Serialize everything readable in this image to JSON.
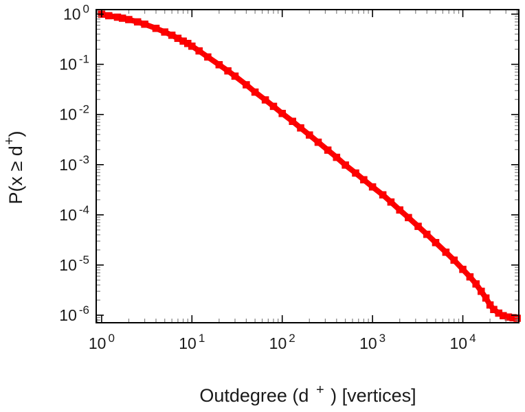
{
  "figure": {
    "background": "#ffffff"
  },
  "chart_data": {
    "type": "scatter",
    "plot_style": "ccdf-log-log",
    "title": "",
    "xlabel": "Outdegree (d⁺) [vertices]",
    "ylabel": "P(x ≥ d⁺)",
    "xlabel_parts": {
      "pre": "Outdegree (d ",
      "sup": "+",
      "post": " ) [vertices]"
    },
    "ylabel_parts": {
      "pre": "P(x ≥ d",
      "sup": "+",
      "post": ")"
    },
    "x_scale": "log",
    "y_scale": "log",
    "tick_base": "10",
    "x_tick_exponents": [
      0,
      1,
      2,
      3,
      4
    ],
    "y_tick_exponents": [
      0,
      -1,
      -2,
      -3,
      -4,
      -5,
      -6
    ],
    "x_range_log": [
      -0.06,
      4.62
    ],
    "y_range_log": [
      -6.15,
      0.09
    ],
    "grid": "off",
    "legend": "none",
    "axis_color": "#000000",
    "minor_tick_color": "#808080",
    "marker": {
      "shape": "square",
      "color": "#ff0000",
      "edge_color": "#e00000",
      "size": 10
    },
    "points": [
      [
        1,
        1.0
      ],
      [
        1.2,
        0.93
      ],
      [
        1.5,
        0.87
      ],
      [
        1.7,
        0.83
      ],
      [
        2,
        0.78
      ],
      [
        2.5,
        0.7
      ],
      [
        3,
        0.63
      ],
      [
        4,
        0.52
      ],
      [
        5,
        0.44
      ],
      [
        6,
        0.38
      ],
      [
        7,
        0.33
      ],
      [
        8,
        0.29
      ],
      [
        9,
        0.26
      ],
      [
        10,
        0.23
      ],
      [
        12,
        0.185
      ],
      [
        15,
        0.14
      ],
      [
        20,
        0.098
      ],
      [
        25,
        0.074
      ],
      [
        30,
        0.058
      ],
      [
        40,
        0.039
      ],
      [
        50,
        0.028
      ],
      [
        65,
        0.0195
      ],
      [
        80,
        0.0145
      ],
      [
        100,
        0.0105
      ],
      [
        130,
        0.0073
      ],
      [
        160,
        0.0054
      ],
      [
        200,
        0.0039
      ],
      [
        250,
        0.0028
      ],
      [
        320,
        0.00195
      ],
      [
        400,
        0.0014
      ],
      [
        500,
        0.00098
      ],
      [
        650,
        0.00068
      ],
      [
        800,
        0.0005
      ],
      [
        1000,
        0.00036
      ],
      [
        1300,
        0.00025
      ],
      [
        1600,
        0.00018
      ],
      [
        2000,
        0.000125
      ],
      [
        2500,
        8.8e-05
      ],
      [
        3200,
        5.9e-05
      ],
      [
        4000,
        4.1e-05
      ],
      [
        5000,
        2.8e-05
      ],
      [
        6500,
        1.8e-05
      ],
      [
        8000,
        1.25e-05
      ],
      [
        10000,
        8.2e-06
      ],
      [
        12000,
        5.8e-06
      ],
      [
        14000,
        4.2e-06
      ],
      [
        16000,
        3e-06
      ],
      [
        18000,
        2.2e-06
      ],
      [
        20000,
        1.6e-06
      ],
      [
        22000,
        1.3e-06
      ],
      [
        25000,
        1.1e-06
      ],
      [
        28000,
        9.8e-07
      ],
      [
        32000,
        9.2e-07
      ],
      [
        36000,
        8.9e-07
      ],
      [
        40000,
        8.7e-07
      ]
    ]
  }
}
